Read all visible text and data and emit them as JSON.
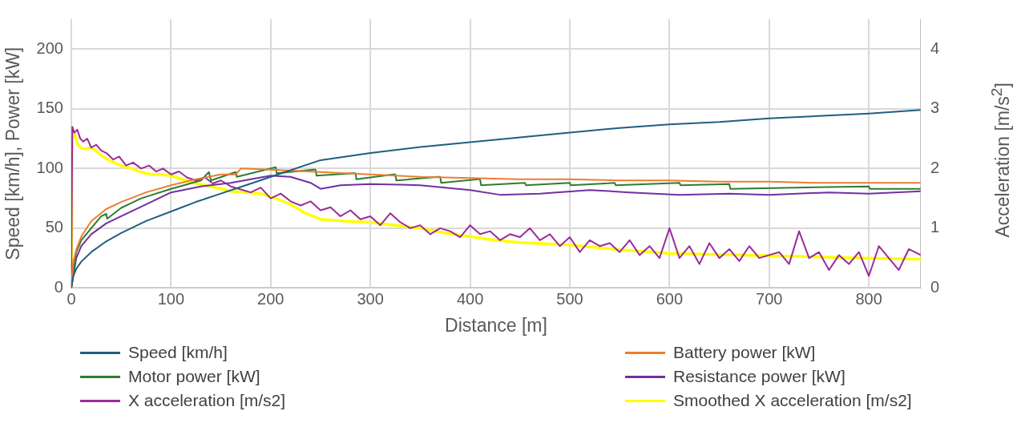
{
  "chart_data": {
    "type": "line",
    "xlabel": "Distance [m]",
    "ylabel": "Speed [km/h], Power [kW]",
    "y2label": "Acceleration [m/s$^{2}$]",
    "xlim": [
      0,
      852
    ],
    "xticks": [
      0,
      100,
      200,
      300,
      400,
      500,
      600,
      700,
      800
    ],
    "ylim": [
      0,
      225
    ],
    "yticks": [
      0,
      50,
      100,
      150,
      200
    ],
    "y2lim": [
      0,
      4.5
    ],
    "y2ticks": [
      0,
      1,
      2,
      3,
      4
    ],
    "grid": true,
    "legend": "bottom",
    "marker": "none",
    "line_style": "solid",
    "series": [
      {
        "name": "Speed [km/h]",
        "color": "#1f5f7f",
        "x": [
          0,
          2,
          5,
          10,
          20,
          35,
          50,
          75,
          100,
          125,
          150,
          175,
          200,
          250,
          300,
          350,
          400,
          450,
          500,
          550,
          600,
          650,
          700,
          750,
          800,
          852
        ],
        "values": [
          0,
          10,
          16,
          22,
          30,
          39,
          46,
          56,
          64,
          72,
          79,
          86,
          93,
          107,
          113,
          118,
          122,
          126,
          130,
          134,
          137,
          139,
          142,
          144,
          146,
          149
        ]
      },
      {
        "name": "Battery power [kW]",
        "color": "#ed7d31",
        "x": [
          0,
          2,
          5,
          10,
          20,
          35,
          50,
          75,
          100,
          125,
          150,
          165,
          170,
          200,
          250,
          300,
          350,
          400,
          450,
          500,
          550,
          600,
          650,
          700,
          750,
          800,
          852
        ],
        "values": [
          0,
          22,
          32,
          43,
          56,
          66,
          72,
          80,
          86,
          91,
          95,
          95,
          100,
          99,
          97,
          95,
          93,
          92,
          91,
          91,
          90,
          90,
          89,
          89,
          88,
          88,
          88
        ]
      },
      {
        "name": "Motor power [kW]",
        "color": "#2e7d32",
        "x": [
          0,
          5,
          10,
          20,
          30,
          35,
          36,
          50,
          70,
          100,
          130,
          138,
          140,
          165,
          166,
          200,
          205,
          206,
          243,
          245,
          246,
          283,
          285,
          286,
          323,
          325,
          326,
          368,
          370,
          371,
          408,
          410,
          411,
          455,
          456,
          500,
          501,
          545,
          546,
          610,
          611,
          660,
          661,
          800,
          801,
          852
        ],
        "values": [
          0,
          30,
          40,
          50,
          60,
          62,
          58,
          67,
          75,
          83,
          90,
          97,
          90,
          97,
          93,
          100,
          101,
          96,
          99,
          99,
          94,
          96,
          96,
          91,
          95,
          95,
          90,
          93,
          93,
          88,
          91,
          91,
          86,
          88,
          86,
          88,
          86,
          88,
          86,
          88,
          86,
          87,
          83,
          85,
          83,
          83
        ]
      },
      {
        "name": "Resistance power [kW]",
        "color": "#7030a0",
        "x": [
          0,
          5,
          10,
          20,
          35,
          50,
          75,
          100,
          130,
          160,
          200,
          220,
          240,
          250,
          270,
          300,
          350,
          400,
          430,
          470,
          520,
          560,
          610,
          660,
          700,
          760,
          800,
          852
        ],
        "values": [
          0,
          25,
          35,
          45,
          54,
          60,
          70,
          80,
          85,
          88,
          94,
          93,
          88,
          83,
          86,
          87,
          86,
          82,
          78,
          79,
          82,
          80,
          78,
          79,
          78,
          80,
          79,
          81
        ]
      },
      {
        "name": "X acceleration [m/s2]",
        "color": "#9b2c9b",
        "axis": "y2",
        "x": [
          0,
          1,
          3,
          6,
          9,
          12,
          16,
          20,
          25,
          30,
          36,
          42,
          48,
          55,
          62,
          70,
          78,
          85,
          92,
          100,
          108,
          116,
          125,
          134,
          142,
          150,
          160,
          170,
          180,
          190,
          200,
          210,
          220,
          230,
          240,
          250,
          260,
          270,
          280,
          290,
          300,
          310,
          320,
          330,
          340,
          350,
          360,
          370,
          380,
          390,
          400,
          410,
          420,
          430,
          440,
          450,
          460,
          470,
          480,
          490,
          500,
          510,
          520,
          530,
          540,
          550,
          560,
          570,
          580,
          590,
          600,
          610,
          620,
          630,
          640,
          650,
          660,
          670,
          680,
          690,
          700,
          710,
          720,
          730,
          740,
          750,
          760,
          770,
          780,
          790,
          800,
          810,
          820,
          830,
          840,
          852
        ],
        "values": [
          0,
          2.7,
          2.6,
          2.65,
          2.5,
          2.45,
          2.5,
          2.35,
          2.4,
          2.3,
          2.25,
          2.15,
          2.2,
          2.05,
          2.1,
          2.0,
          2.05,
          1.95,
          2.0,
          1.9,
          1.95,
          1.85,
          1.8,
          1.85,
          1.75,
          1.8,
          1.7,
          1.65,
          1.6,
          1.68,
          1.5,
          1.58,
          1.45,
          1.38,
          1.45,
          1.3,
          1.35,
          1.2,
          1.3,
          1.15,
          1.2,
          1.05,
          1.25,
          1.1,
          1.0,
          1.05,
          0.9,
          1.0,
          0.95,
          0.85,
          1.05,
          0.9,
          0.95,
          0.8,
          0.9,
          0.85,
          1.0,
          0.8,
          0.9,
          0.7,
          0.85,
          0.6,
          0.8,
          0.7,
          0.75,
          0.6,
          0.8,
          0.55,
          0.7,
          0.5,
          1.0,
          0.5,
          0.7,
          0.4,
          0.75,
          0.5,
          0.65,
          0.45,
          0.7,
          0.5,
          0.55,
          0.6,
          0.4,
          0.95,
          0.5,
          0.6,
          0.3,
          0.55,
          0.4,
          0.6,
          0.2,
          0.7,
          0.5,
          0.3,
          0.65,
          0.55
        ]
      },
      {
        "name": "Smoothed X acceleration [m/s2]",
        "color": "#ffff00",
        "axis": "y2",
        "x": [
          0,
          1,
          3,
          6,
          10,
          15,
          20,
          25,
          30,
          40,
          50,
          60,
          70,
          80,
          90,
          100,
          115,
          130,
          145,
          160,
          175,
          190,
          205,
          220,
          235,
          250,
          275,
          300,
          325,
          350,
          375,
          400,
          425,
          450,
          475,
          500,
          550,
          600,
          650,
          700,
          750,
          800,
          852
        ],
        "values": [
          0,
          2.5,
          2.6,
          2.42,
          2.34,
          2.33,
          2.35,
          2.3,
          2.22,
          2.12,
          2.05,
          2.0,
          1.94,
          1.9,
          1.9,
          1.88,
          1.8,
          1.73,
          1.68,
          1.62,
          1.6,
          1.58,
          1.5,
          1.4,
          1.25,
          1.15,
          1.12,
          1.1,
          1.05,
          1.0,
          0.92,
          0.86,
          0.8,
          0.76,
          0.74,
          0.72,
          0.64,
          0.58,
          0.56,
          0.54,
          0.52,
          0.5,
          0.48
        ]
      }
    ]
  }
}
